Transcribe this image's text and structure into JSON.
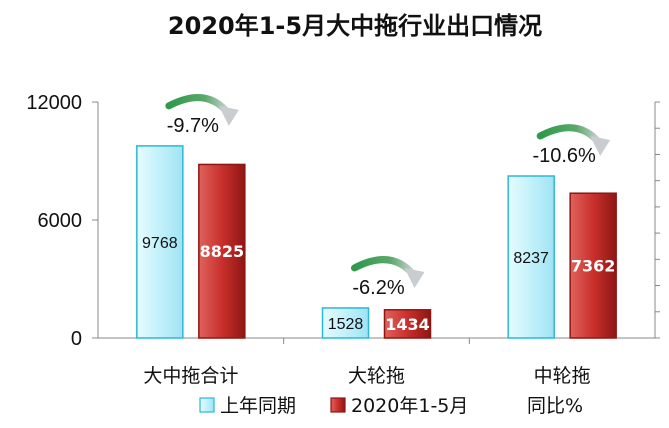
{
  "chart_data": {
    "type": "bar",
    "title": "2020年1-5月大中拖行业出口情况",
    "categories": [
      "大中拖合计",
      "大轮拖",
      "中轮拖"
    ],
    "series": [
      {
        "name": "上年同期",
        "values": [
          9768,
          1528,
          8237
        ],
        "color": "#bdeffa"
      },
      {
        "name": "2020年1-5月",
        "values": [
          8825,
          1434,
          7362
        ],
        "color": "#c9302c"
      }
    ],
    "yoy": {
      "name": "同比%",
      "labels": [
        "-9.7%",
        "-6.2%",
        "-10.6%"
      ]
    },
    "yticks": [
      "12000",
      "6000",
      "0"
    ],
    "ylim": [
      0,
      12000
    ],
    "legend_position": "bottom",
    "grid": false
  }
}
